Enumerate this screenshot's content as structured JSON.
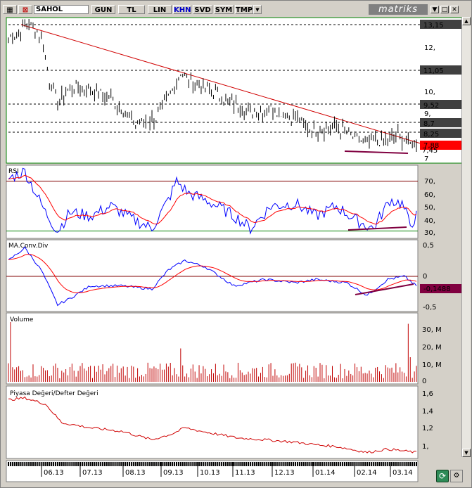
{
  "toolbar": {
    "symbol": "SAHOL",
    "buttons": [
      "GUN",
      "TL",
      "LIN",
      "KHN",
      "SVD",
      "SYM",
      "TMP"
    ],
    "active": "KHN",
    "brand": "matriks"
  },
  "price_panel": {
    "levels": [
      "13,15",
      "11,05",
      "9,52",
      "8,7",
      "8,25",
      "7,88",
      "7,45"
    ],
    "ticks": [
      "12,",
      "10,",
      "9,",
      "7"
    ],
    "level_colors": {
      "default": "#404040",
      "current": "#ff0000"
    }
  },
  "rsi_panel": {
    "label": "RSI",
    "ticks": [
      "70,",
      "60,",
      "50,",
      "40,",
      "30,"
    ],
    "colors": {
      "rsi": "#0000ff",
      "signal": "#ff0000",
      "upper": "#800000",
      "lower": "#008000"
    }
  },
  "macd_panel": {
    "label": "MA.Conv.Div",
    "ticks": [
      "0,5",
      "0",
      "-0,5"
    ],
    "current": "-0,1488",
    "current_color": "#800040"
  },
  "volume_panel": {
    "label": "Volume",
    "ticks": [
      "30, M",
      "20, M",
      "10, M",
      "0"
    ]
  },
  "pddd_panel": {
    "label": "Piyasa Değeri/Defter Değeri",
    "ticks": [
      "1,6",
      "1,4",
      "1,2",
      "1,"
    ]
  },
  "x_axis": {
    "labels": [
      "06.13",
      "07.13",
      "08.13",
      "09.13",
      "10.13",
      "11.13",
      "12.13",
      "01.14",
      "02.14",
      "03.14"
    ]
  }
}
